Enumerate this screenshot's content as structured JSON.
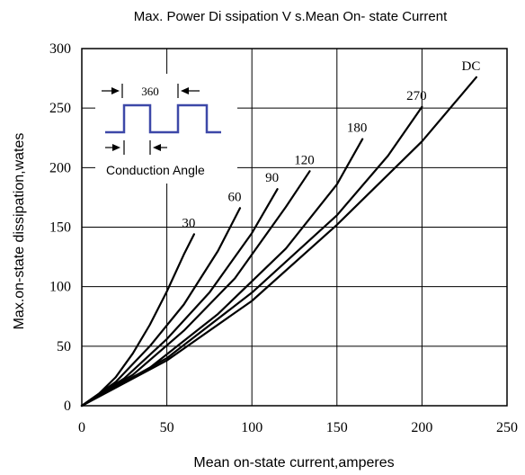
{
  "chart_data": {
    "type": "line",
    "title": "Max.  Power Di ssipation V s.Mean On- state  Current",
    "xlabel": "Mean on-state current,amperes",
    "ylabel": "Max.on-state dissipation,wates",
    "xlim": [
      0,
      250
    ],
    "ylim": [
      0,
      300
    ],
    "x_ticks": [
      "0",
      "50",
      "100",
      "150",
      "200",
      "250"
    ],
    "y_ticks": [
      "0",
      "50",
      "100",
      "150",
      "200",
      "250",
      "300"
    ],
    "grid": true,
    "series": [
      {
        "name": "30",
        "x": [
          0,
          10,
          20,
          30,
          40,
          50,
          60,
          66
        ],
        "y": [
          0,
          10,
          24,
          44,
          68,
          96,
          127,
          144
        ]
      },
      {
        "name": "60",
        "x": [
          0,
          20,
          40,
          60,
          80,
          93
        ],
        "y": [
          0,
          20,
          50,
          85,
          130,
          166
        ]
      },
      {
        "name": "90",
        "x": [
          0,
          25,
          50,
          75,
          100,
          115
        ],
        "y": [
          0,
          23,
          56,
          95,
          145,
          182
        ]
      },
      {
        "name": "120",
        "x": [
          0,
          30,
          60,
          90,
          120,
          134
        ],
        "y": [
          0,
          26,
          63,
          107,
          167,
          197
        ]
      },
      {
        "name": "180",
        "x": [
          0,
          40,
          80,
          120,
          150,
          165
        ],
        "y": [
          0,
          32,
          77,
          132,
          186,
          224
        ]
      },
      {
        "name": "270",
        "x": [
          0,
          50,
          100,
          150,
          180,
          200
        ],
        "y": [
          0,
          40,
          95,
          160,
          210,
          251
        ]
      },
      {
        "name": "DC",
        "x": [
          0,
          50,
          100,
          150,
          200,
          232
        ],
        "y": [
          0,
          38,
          88,
          152,
          222,
          276
        ]
      }
    ],
    "inset": {
      "period_label": "360",
      "angle_label": "Conduction  Angle"
    }
  }
}
